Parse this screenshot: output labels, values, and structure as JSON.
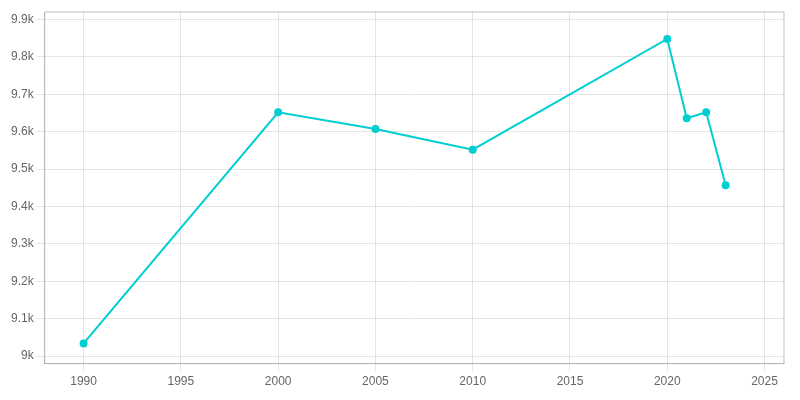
{
  "chart_data": {
    "type": "line",
    "x": [
      1990,
      2000,
      2005,
      2010,
      2020,
      2021,
      2022,
      2023
    ],
    "values": [
      9034,
      9652,
      9607,
      9552,
      9848,
      9636,
      9652,
      9457
    ],
    "color": "#00CED1",
    "marker": "circle",
    "xlim": [
      1988,
      2026
    ],
    "ylim": [
      8980,
      9920
    ],
    "xticks": [
      1990,
      1995,
      2000,
      2005,
      2010,
      2015,
      2020,
      2025
    ],
    "yticks": [
      {
        "value": 9000,
        "label": "9k"
      },
      {
        "value": 9100,
        "label": "9.1k"
      },
      {
        "value": 9200,
        "label": "9.2k"
      },
      {
        "value": 9300,
        "label": "9.3k"
      },
      {
        "value": 9400,
        "label": "9.4k"
      },
      {
        "value": 9500,
        "label": "9.5k"
      },
      {
        "value": 9600,
        "label": "9.6k"
      },
      {
        "value": 9700,
        "label": "9.7k"
      },
      {
        "value": 9800,
        "label": "9.8k"
      },
      {
        "value": 9900,
        "label": "9.9k"
      }
    ],
    "grid": true
  }
}
